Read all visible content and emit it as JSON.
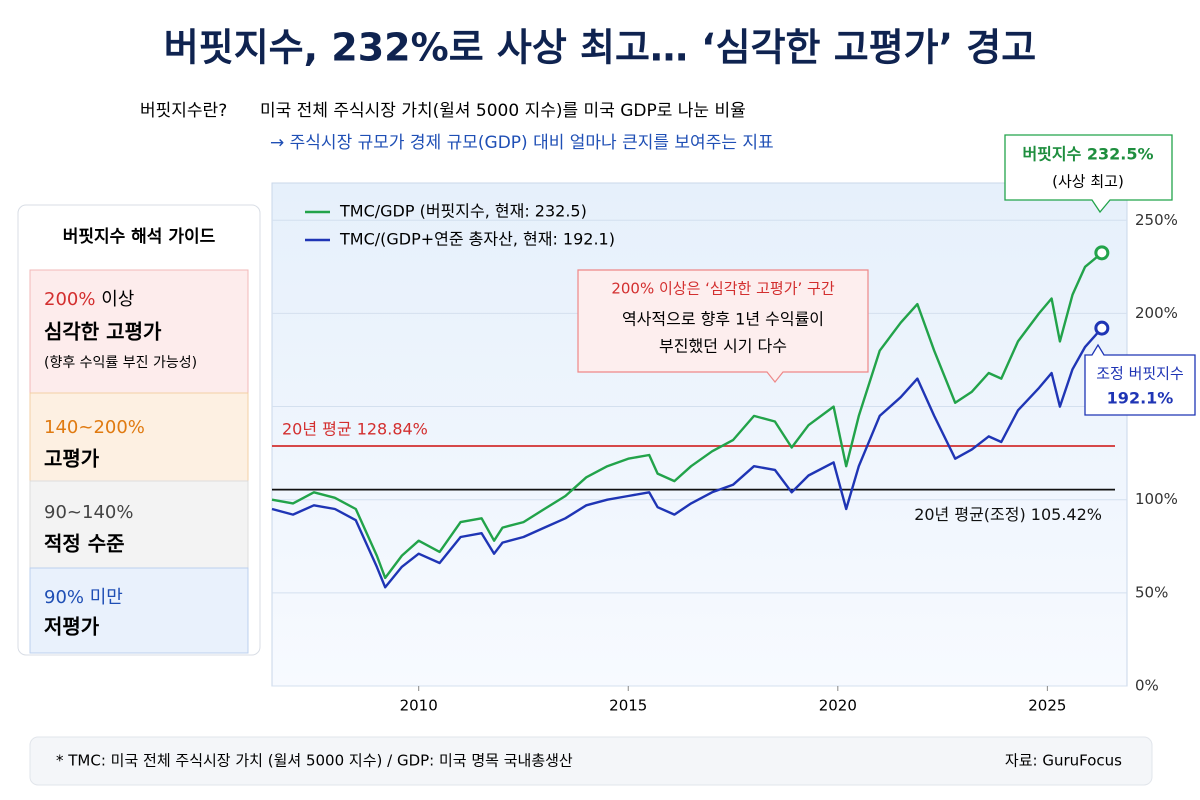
{
  "header": {
    "title": "버핏지수, 232%로 사상 최고… ‘심각한 고평가’ 경고",
    "definition_label": "버핏지수란?",
    "definition": "미국 전체 주식시장 가치(윌셔 5000 지수)를 미국 GDP로 나눈 비율",
    "definition_note": "→ 주식시장 규모가 경제 규모(GDP) 대비 얼마나 큰지를 보여주는 지표"
  },
  "guide": {
    "title": "버핏지수 해석 가이드",
    "tiers": [
      {
        "range": "200%",
        "qualifier": "이상",
        "label": "심각한 고평가",
        "note": "(향후 수익률 부진 가능성)"
      },
      {
        "range": "140~200%",
        "label": "고평가"
      },
      {
        "range": "90~140%",
        "label": "적정 수준"
      },
      {
        "range": "90% 미만",
        "label": "저평가"
      }
    ]
  },
  "chart_data": {
    "type": "line",
    "x": [
      2006.5,
      2007.0,
      2007.5,
      2008.0,
      2008.5,
      2009.0,
      2009.2,
      2009.6,
      2010.0,
      2010.5,
      2011.0,
      2011.5,
      2011.8,
      2012.0,
      2012.5,
      2013.0,
      2013.5,
      2014.0,
      2014.5,
      2015.0,
      2015.5,
      2015.7,
      2016.1,
      2016.5,
      2017.0,
      2017.5,
      2018.0,
      2018.5,
      2018.9,
      2019.3,
      2019.9,
      2020.2,
      2020.5,
      2021.0,
      2021.5,
      2021.9,
      2022.3,
      2022.8,
      2023.2,
      2023.6,
      2023.9,
      2024.3,
      2024.8,
      2025.1,
      2025.3,
      2025.6,
      2025.9,
      2026.3
    ],
    "series": [
      {
        "name": "TMC/GDP (버핏지수, 현재: 232.5)",
        "color": "#22a34a",
        "values": [
          100,
          98,
          104,
          101,
          95,
          70,
          58,
          70,
          78,
          72,
          88,
          90,
          78,
          85,
          88,
          95,
          102,
          112,
          118,
          122,
          124,
          114,
          110,
          118,
          126,
          132,
          145,
          142,
          128,
          140,
          150,
          118,
          145,
          180,
          195,
          205,
          180,
          152,
          158,
          168,
          165,
          185,
          200,
          208,
          185,
          210,
          225,
          232.5
        ]
      },
      {
        "name": "TMC/(GDP+연준 총자산, 현재: 192.1)",
        "color": "#1f35b5",
        "values": [
          95,
          92,
          97,
          95,
          89,
          64,
          53,
          64,
          71,
          66,
          80,
          82,
          71,
          77,
          80,
          85,
          90,
          97,
          100,
          102,
          104,
          96,
          92,
          98,
          104,
          108,
          118,
          116,
          104,
          113,
          120,
          95,
          118,
          145,
          155,
          165,
          145,
          122,
          127,
          134,
          131,
          148,
          160,
          168,
          150,
          170,
          182,
          192.1
        ]
      }
    ],
    "xlim": [
      2006.5,
      2026.9
    ],
    "xticks": [
      2010,
      2015,
      2020,
      2025
    ],
    "ylim": [
      0,
      270
    ],
    "yticks": [
      {
        "value": 0,
        "label": "0%"
      },
      {
        "value": 50,
        "label": "50%"
      },
      {
        "value": 100,
        "label": "100%"
      },
      {
        "value": 150,
        "label": "150%"
      },
      {
        "value": 200,
        "label": "200%"
      },
      {
        "value": 250,
        "label": "250%"
      }
    ],
    "grid": true,
    "reference_lines": [
      {
        "value": 128.84,
        "label": "20년 평균 128.84%",
        "color": "#d32f2f"
      },
      {
        "value": 105.42,
        "label": "20년 평균(조정) 105.42%",
        "color": "#111111"
      }
    ],
    "callout": {
      "title": "200% 이상은 ‘심각한 고평가’ 구간",
      "lines": [
        "역사적으로 향후 1년 수익률이",
        "부진했던 시기 다수"
      ]
    },
    "end_labels": [
      {
        "title": "버핏지수 232.5%",
        "subtitle": "(사상 최고)"
      },
      {
        "title": "조정 버핏지수",
        "subtitle": "192.1%"
      }
    ]
  },
  "footer": {
    "note": "* TMC: 미국 전체 주식시장 가치 (윌셔 5000 지수)  /  GDP: 미국 명목 국내총생산",
    "source": "자료: GuruFocus"
  }
}
